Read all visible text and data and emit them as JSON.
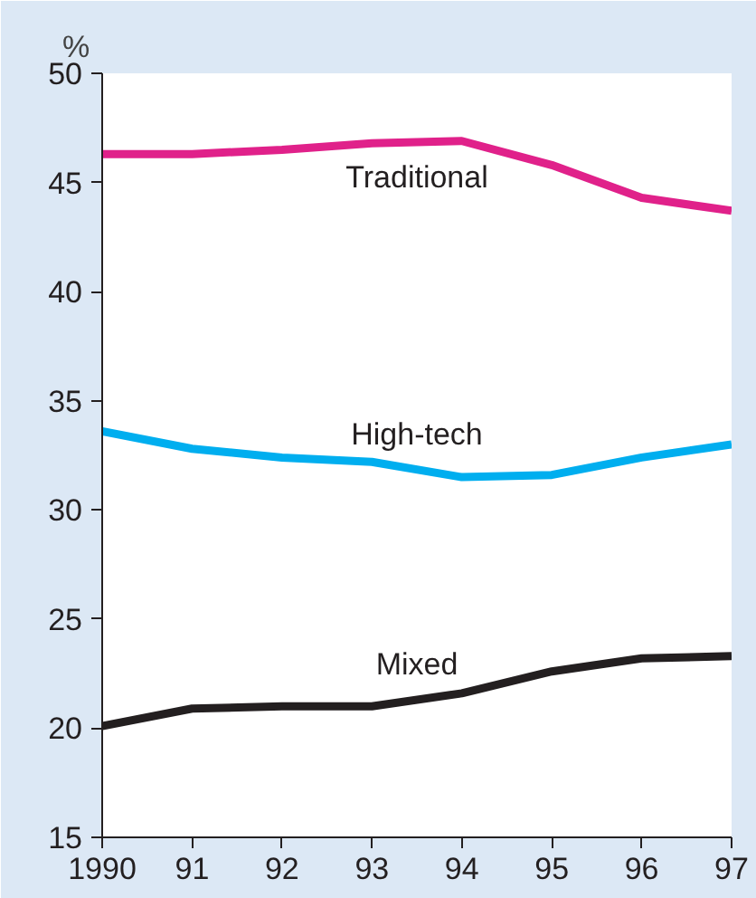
{
  "chart_data": {
    "type": "line",
    "ylabel": "%",
    "x": [
      1990,
      1991,
      1992,
      1993,
      1994,
      1995,
      1996,
      1997
    ],
    "xlim": [
      1990,
      1997
    ],
    "xticks": [
      {
        "value": 1990,
        "label": "1990"
      },
      {
        "value": 1991,
        "label": "91"
      },
      {
        "value": 1992,
        "label": "92"
      },
      {
        "value": 1993,
        "label": "93"
      },
      {
        "value": 1994,
        "label": "94"
      },
      {
        "value": 1995,
        "label": "95"
      },
      {
        "value": 1996,
        "label": "96"
      },
      {
        "value": 1997,
        "label": "97"
      }
    ],
    "ylim": [
      15,
      50
    ],
    "yticks": [
      15,
      20,
      25,
      30,
      35,
      40,
      45,
      50
    ],
    "grid": false,
    "legend": false,
    "series": [
      {
        "name": "Traditional",
        "color": "#e0218a",
        "values": [
          46.3,
          46.3,
          46.5,
          46.8,
          46.9,
          45.8,
          44.3,
          43.7
        ]
      },
      {
        "name": "High-tech",
        "color": "#00aeef",
        "values": [
          33.6,
          32.8,
          32.4,
          32.2,
          31.5,
          31.6,
          32.4,
          33.0
        ]
      },
      {
        "name": "Mixed",
        "color": "#231f20",
        "values": [
          20.1,
          20.9,
          21.0,
          21.0,
          21.6,
          22.6,
          23.2,
          23.3
        ]
      }
    ]
  }
}
